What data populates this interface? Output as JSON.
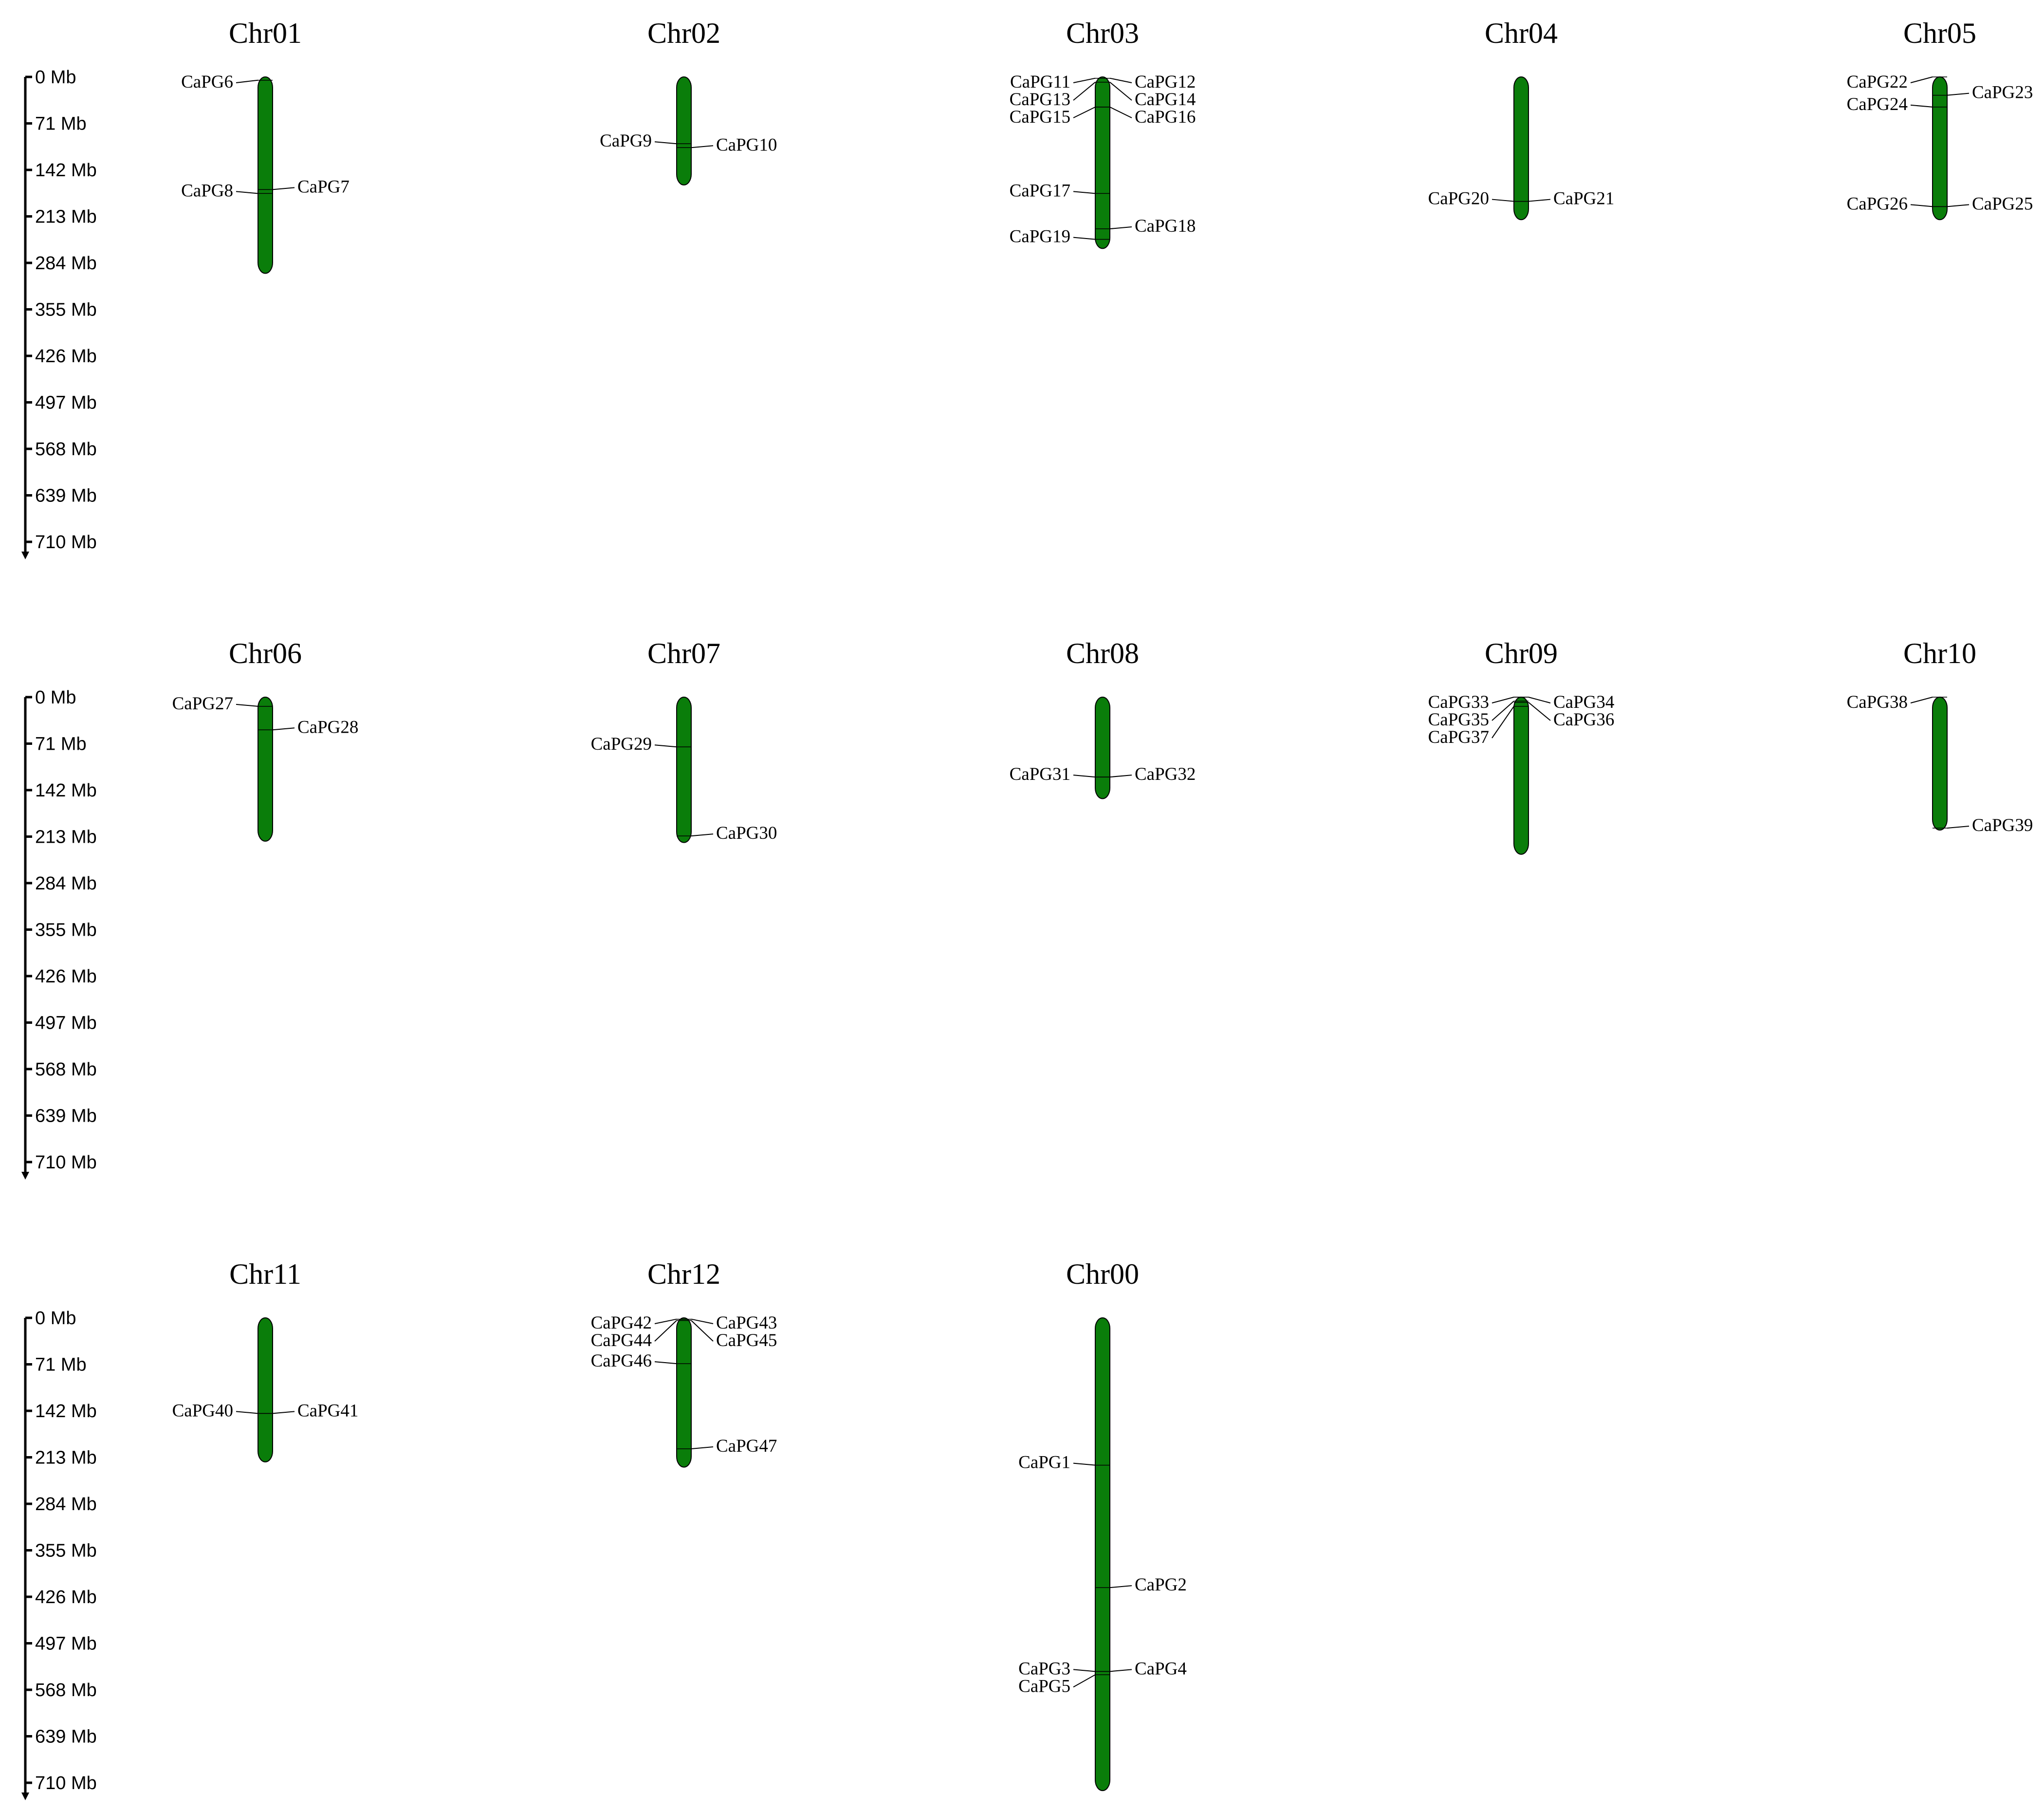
{
  "unit": "Mb",
  "scale_ticks": [
    0,
    71,
    142,
    213,
    284,
    355,
    426,
    497,
    568,
    639,
    710
  ],
  "colors": {
    "chromosome_fill": "#0a7d0a",
    "outline": "#000000",
    "text": "#000000"
  },
  "chromosomes": [
    {
      "name": "Chr01",
      "row": 0,
      "col": 0,
      "length": 300,
      "genes": [
        {
          "name": "CaPG6",
          "pos": 5,
          "side": "left"
        },
        {
          "name": "CaPG8",
          "pos": 178,
          "side": "left"
        },
        {
          "name": "CaPG7",
          "pos": 172,
          "side": "right"
        }
      ]
    },
    {
      "name": "Chr02",
      "row": 0,
      "col": 1,
      "length": 165,
      "genes": [
        {
          "name": "CaPG9",
          "pos": 102,
          "side": "left"
        },
        {
          "name": "CaPG10",
          "pos": 108,
          "side": "right"
        }
      ]
    },
    {
      "name": "Chr03",
      "row": 0,
      "col": 2,
      "length": 262,
      "genes": [
        {
          "name": "CaPG11",
          "pos": 2,
          "side": "left"
        },
        {
          "name": "CaPG13",
          "pos": 8,
          "side": "left"
        },
        {
          "name": "CaPG15",
          "pos": 46,
          "side": "left"
        },
        {
          "name": "CaPG17",
          "pos": 178,
          "side": "left"
        },
        {
          "name": "CaPG19",
          "pos": 248,
          "side": "left"
        },
        {
          "name": "CaPG12",
          "pos": 2,
          "side": "right"
        },
        {
          "name": "CaPG14",
          "pos": 8,
          "side": "right"
        },
        {
          "name": "CaPG16",
          "pos": 46,
          "side": "right"
        },
        {
          "name": "CaPG18",
          "pos": 232,
          "side": "right"
        }
      ]
    },
    {
      "name": "Chr04",
      "row": 0,
      "col": 3,
      "length": 218,
      "genes": [
        {
          "name": "CaPG20",
          "pos": 190,
          "side": "left"
        },
        {
          "name": "CaPG21",
          "pos": 190,
          "side": "right"
        }
      ]
    },
    {
      "name": "Chr05",
      "row": 0,
      "col": 4,
      "length": 218,
      "genes": [
        {
          "name": "CaPG22",
          "pos": 0,
          "side": "left"
        },
        {
          "name": "CaPG24",
          "pos": 46,
          "side": "left"
        },
        {
          "name": "CaPG26",
          "pos": 198,
          "side": "left"
        },
        {
          "name": "CaPG23",
          "pos": 28,
          "side": "right"
        },
        {
          "name": "CaPG25",
          "pos": 198,
          "side": "right"
        }
      ]
    },
    {
      "name": "Chr06",
      "row": 1,
      "col": 0,
      "length": 220,
      "genes": [
        {
          "name": "CaPG27",
          "pos": 14,
          "side": "left"
        },
        {
          "name": "CaPG28",
          "pos": 50,
          "side": "right"
        }
      ]
    },
    {
      "name": "Chr07",
      "row": 1,
      "col": 1,
      "length": 222,
      "genes": [
        {
          "name": "CaPG29",
          "pos": 76,
          "side": "left"
        },
        {
          "name": "CaPG30",
          "pos": 212,
          "side": "right"
        }
      ]
    },
    {
      "name": "Chr08",
      "row": 1,
      "col": 2,
      "length": 155,
      "genes": [
        {
          "name": "CaPG31",
          "pos": 122,
          "side": "left"
        },
        {
          "name": "CaPG32",
          "pos": 122,
          "side": "right"
        }
      ]
    },
    {
      "name": "Chr09",
      "row": 1,
      "col": 3,
      "length": 240,
      "genes": [
        {
          "name": "CaPG33",
          "pos": 0,
          "side": "left"
        },
        {
          "name": "CaPG35",
          "pos": 6,
          "side": "left"
        },
        {
          "name": "CaPG37",
          "pos": 14,
          "side": "left"
        },
        {
          "name": "CaPG34",
          "pos": 0,
          "side": "right"
        },
        {
          "name": "CaPG36",
          "pos": 8,
          "side": "right"
        }
      ]
    },
    {
      "name": "Chr10",
      "row": 1,
      "col": 4,
      "length": 203,
      "genes": [
        {
          "name": "CaPG38",
          "pos": 0,
          "side": "left"
        },
        {
          "name": "CaPG39",
          "pos": 200,
          "side": "right"
        }
      ]
    },
    {
      "name": "Chr11",
      "row": 2,
      "col": 0,
      "length": 220,
      "genes": [
        {
          "name": "CaPG40",
          "pos": 146,
          "side": "left"
        },
        {
          "name": "CaPG41",
          "pos": 146,
          "side": "right"
        }
      ]
    },
    {
      "name": "Chr12",
      "row": 2,
      "col": 1,
      "length": 228,
      "genes": [
        {
          "name": "CaPG42",
          "pos": 2,
          "side": "left"
        },
        {
          "name": "CaPG44",
          "pos": 4,
          "side": "left"
        },
        {
          "name": "CaPG46",
          "pos": 70,
          "side": "left"
        },
        {
          "name": "CaPG43",
          "pos": 2,
          "side": "right"
        },
        {
          "name": "CaPG45",
          "pos": 4,
          "side": "right"
        },
        {
          "name": "CaPG47",
          "pos": 200,
          "side": "right"
        }
      ]
    },
    {
      "name": "Chr00",
      "row": 2,
      "col": 2,
      "length": 722,
      "genes": [
        {
          "name": "CaPG1",
          "pos": 225,
          "side": "left"
        },
        {
          "name": "CaPG3",
          "pos": 540,
          "side": "left"
        },
        {
          "name": "CaPG5",
          "pos": 545,
          "side": "left"
        },
        {
          "name": "CaPG2",
          "pos": 412,
          "side": "right"
        },
        {
          "name": "CaPG4",
          "pos": 540,
          "side": "right"
        }
      ]
    }
  ]
}
